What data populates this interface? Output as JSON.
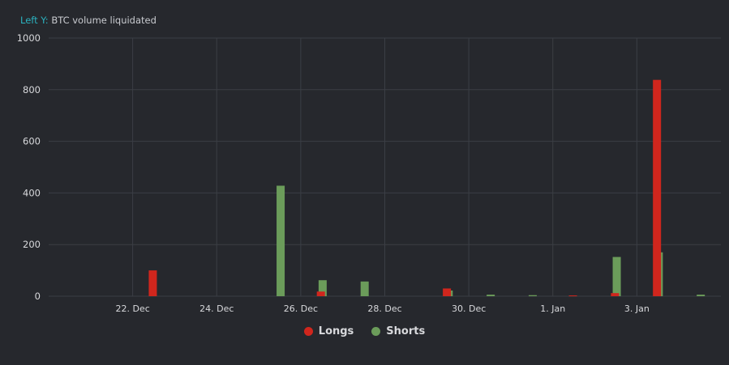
{
  "axis_caption": {
    "prefix": "Left Y:",
    "label": "BTC volume liquidated"
  },
  "chart_data": {
    "type": "bar",
    "ylim": [
      0,
      1000
    ],
    "yticks": [
      0,
      200,
      400,
      600,
      800,
      1000
    ],
    "xlim": [
      "2020-12-20",
      "2021-01-05"
    ],
    "xticks": [
      {
        "date": "2020-12-22",
        "label": "22. Dec"
      },
      {
        "date": "2020-12-24",
        "label": "24. Dec"
      },
      {
        "date": "2020-12-26",
        "label": "26. Dec"
      },
      {
        "date": "2020-12-28",
        "label": "28. Dec"
      },
      {
        "date": "2020-12-30",
        "label": "30. Dec"
      },
      {
        "date": "2021-01-01",
        "label": "1. Jan"
      },
      {
        "date": "2021-01-03",
        "label": "3. Jan"
      }
    ],
    "grid": true,
    "legend_position": "bottom-center",
    "dates": [
      "2020-12-23",
      "2020-12-24",
      "2020-12-25",
      "2020-12-26",
      "2020-12-27",
      "2020-12-28",
      "2020-12-29",
      "2020-12-30",
      "2020-12-31",
      "2021-01-01",
      "2021-01-02",
      "2021-01-03",
      "2021-01-04"
    ],
    "series": [
      {
        "name": "Longs",
        "color": "#d0261d",
        "values": [
          100,
          0,
          0,
          0,
          18,
          0,
          0,
          30,
          0,
          0,
          3,
          12,
          838
        ]
      },
      {
        "name": "Shorts",
        "color": "#6b9c5a",
        "values": [
          0,
          0,
          428,
          62,
          57,
          0,
          22,
          6,
          4,
          0,
          152,
          170,
          6
        ]
      }
    ]
  },
  "colors": {
    "background": "#26282d",
    "grid": "#3b3e45",
    "caption_accent": "#2bb3c0"
  }
}
